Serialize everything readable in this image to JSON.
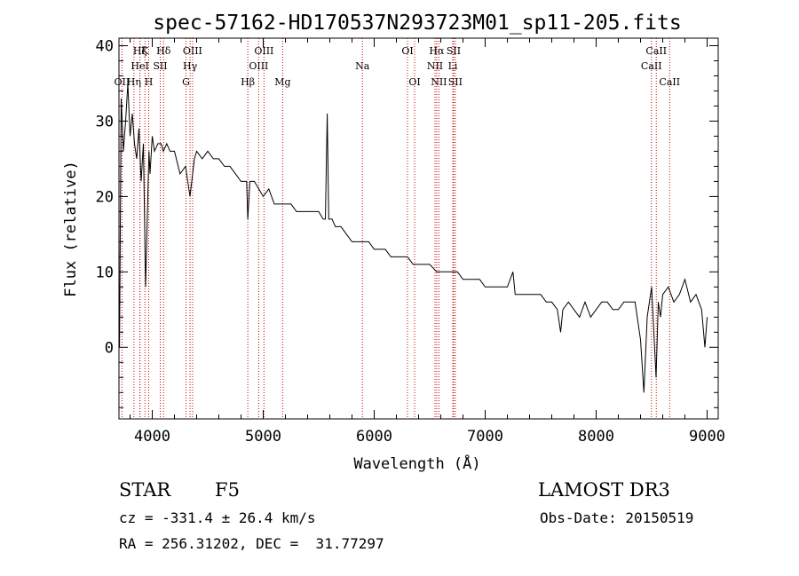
{
  "chart_data": {
    "type": "line",
    "title": "spec-57162-HD170537N293723M01_sp11-205.fits",
    "xlabel": "Wavelength (Å)",
    "ylabel": "Flux (relative)",
    "xlim": [
      3700,
      9100
    ],
    "ylim": [
      -9.5,
      41
    ],
    "xticks": [
      4000,
      5000,
      6000,
      7000,
      8000,
      9000
    ],
    "yticks": [
      0,
      10,
      20,
      30,
      40
    ],
    "grid": false,
    "series": [
      {
        "x": [
          3705,
          3720,
          3740,
          3760,
          3780,
          3800,
          3820,
          3840,
          3860,
          3880,
          3900,
          3920,
          3940,
          3960,
          3970,
          3980,
          4000,
          4020,
          4050,
          4080,
          4100,
          4130,
          4160,
          4200,
          4250,
          4300,
          4340,
          4380,
          4400,
          4450,
          4500,
          4550,
          4600,
          4650,
          4700,
          4750,
          4800,
          4850,
          4861,
          4880,
          4920,
          4960,
          5000,
          5050,
          5100,
          5150,
          5200,
          5250,
          5300,
          5350,
          5400,
          5450,
          5500,
          5540,
          5560,
          5577,
          5590,
          5620,
          5650,
          5700,
          5750,
          5800,
          5850,
          5900,
          5950,
          6000,
          6050,
          6100,
          6150,
          6200,
          6250,
          6300,
          6350,
          6400,
          6450,
          6500,
          6563,
          6600,
          6650,
          6700,
          6750,
          6800,
          6850,
          6900,
          6950,
          7000,
          7050,
          7100,
          7150,
          7200,
          7250,
          7270,
          7300,
          7350,
          7400,
          7450,
          7500,
          7550,
          7600,
          7650,
          7680,
          7700,
          7750,
          7800,
          7850,
          7900,
          7950,
          8000,
          8050,
          8100,
          8150,
          8200,
          8250,
          8300,
          8350,
          8400,
          8430,
          8460,
          8500,
          8540,
          8560,
          8580,
          8600,
          8650,
          8700,
          8750,
          8800,
          8850,
          8900,
          8950,
          8980,
          9000
        ],
        "y": [
          0,
          33,
          26,
          30,
          35,
          28,
          31,
          27,
          25,
          29,
          22,
          27,
          8,
          20,
          26,
          23,
          28,
          26,
          27,
          27,
          26,
          27,
          26,
          26,
          23,
          24,
          20,
          25,
          26,
          25,
          26,
          25,
          25,
          24,
          24,
          23,
          22,
          22,
          17,
          22,
          22,
          21,
          20,
          21,
          19,
          19,
          19,
          19,
          18,
          18,
          18,
          18,
          18,
          17,
          17,
          31,
          17,
          17,
          16,
          16,
          15,
          14,
          14,
          14,
          14,
          13,
          13,
          13,
          12,
          12,
          12,
          12,
          11,
          11,
          11,
          11,
          10,
          10,
          10,
          10,
          10,
          9,
          9,
          9,
          9,
          8,
          8,
          8,
          8,
          8,
          10,
          7,
          7,
          7,
          7,
          7,
          7,
          6,
          6,
          5,
          2,
          5,
          6,
          5,
          4,
          6,
          4,
          5,
          6,
          6,
          5,
          5,
          6,
          6,
          6,
          1,
          -6,
          4,
          8,
          -4,
          6,
          4,
          7,
          8,
          6,
          7,
          9,
          6,
          7,
          5,
          0,
          4
        ]
      }
    ],
    "spectral_lines": [
      {
        "name": "OII",
        "wavelength": 3727
      },
      {
        "name": "Hη",
        "wavelength": 3835
      },
      {
        "name": "Hζ",
        "wavelength": 3889
      },
      {
        "name": "HeI",
        "wavelength": 3889
      },
      {
        "name": "K",
        "wavelength": 3934
      },
      {
        "name": "H",
        "wavelength": 3968
      },
      {
        "name": "SII",
        "wavelength": 4072
      },
      {
        "name": "Hδ",
        "wavelength": 4102
      },
      {
        "name": "G",
        "wavelength": 4304
      },
      {
        "name": "Hγ",
        "wavelength": 4341
      },
      {
        "name": "OIII",
        "wavelength": 4363
      },
      {
        "name": "Hβ",
        "wavelength": 4861
      },
      {
        "name": "OIII",
        "wavelength": 4959
      },
      {
        "name": "OIII",
        "wavelength": 5007
      },
      {
        "name": "Mg",
        "wavelength": 5175
      },
      {
        "name": "Na",
        "wavelength": 5894
      },
      {
        "name": "OI",
        "wavelength": 6300
      },
      {
        "name": "OI",
        "wavelength": 6364
      },
      {
        "name": "NII",
        "wavelength": 6548
      },
      {
        "name": "Hα",
        "wavelength": 6563
      },
      {
        "name": "NII",
        "wavelength": 6583
      },
      {
        "name": "Li",
        "wavelength": 6708
      },
      {
        "name": "SII",
        "wavelength": 6716
      },
      {
        "name": "SII",
        "wavelength": 6731
      },
      {
        "name": "CaII",
        "wavelength": 8498
      },
      {
        "name": "CaII",
        "wavelength": 8542
      },
      {
        "name": "CaII",
        "wavelength": 8662
      }
    ],
    "line_labels": [
      {
        "text": "OII",
        "wavelength": 3727,
        "row": 2
      },
      {
        "text": "Hη",
        "wavelength": 3835,
        "row": 2
      },
      {
        "text": "Hζ",
        "wavelength": 3889,
        "row": 0
      },
      {
        "text": "HeI",
        "wavelength": 3889,
        "row": 1
      },
      {
        "text": "K",
        "wavelength": 3934,
        "row": 0
      },
      {
        "text": "SII",
        "wavelength": 4072,
        "row": 1
      },
      {
        "text": "H",
        "wavelength": 3968,
        "row": 2
      },
      {
        "text": "Hδ",
        "wavelength": 4102,
        "row": 0
      },
      {
        "text": "OIII",
        "wavelength": 4363,
        "row": 0
      },
      {
        "text": "Hγ",
        "wavelength": 4341,
        "row": 1
      },
      {
        "text": "G",
        "wavelength": 4304,
        "row": 2
      },
      {
        "text": "OIII",
        "wavelength": 5007,
        "row": 0
      },
      {
        "text": "OIII",
        "wavelength": 4959,
        "row": 1
      },
      {
        "text": "Hβ",
        "wavelength": 4861,
        "row": 2
      },
      {
        "text": "Mg",
        "wavelength": 5175,
        "row": 2
      },
      {
        "text": "Na",
        "wavelength": 5894,
        "row": 1
      },
      {
        "text": "OI",
        "wavelength": 6300,
        "row": 0
      },
      {
        "text": "OI",
        "wavelength": 6364,
        "row": 2
      },
      {
        "text": "Hα",
        "wavelength": 6563,
        "row": 0
      },
      {
        "text": "SII",
        "wavelength": 6716,
        "row": 0
      },
      {
        "text": "NII",
        "wavelength": 6548,
        "row": 1
      },
      {
        "text": "Li",
        "wavelength": 6708,
        "row": 1
      },
      {
        "text": "NII",
        "wavelength": 6583,
        "row": 2
      },
      {
        "text": "SII",
        "wavelength": 6731,
        "row": 2
      },
      {
        "text": "CaII",
        "wavelength": 8542,
        "row": 0
      },
      {
        "text": "CaII",
        "wavelength": 8498,
        "row": 1
      },
      {
        "text": "CaII",
        "wavelength": 8662,
        "row": 2
      }
    ],
    "line_color": "#cc0000",
    "spectrum_color": "#000000"
  },
  "info": {
    "object_class": "STAR",
    "subclass": "F5",
    "survey": "LAMOST DR3",
    "cz": "cz = -331.4 ± 26.4 km/s",
    "obs_date": "Obs-Date: 20150519",
    "radec": "RA = 256.31202, DEC =  31.77297"
  }
}
